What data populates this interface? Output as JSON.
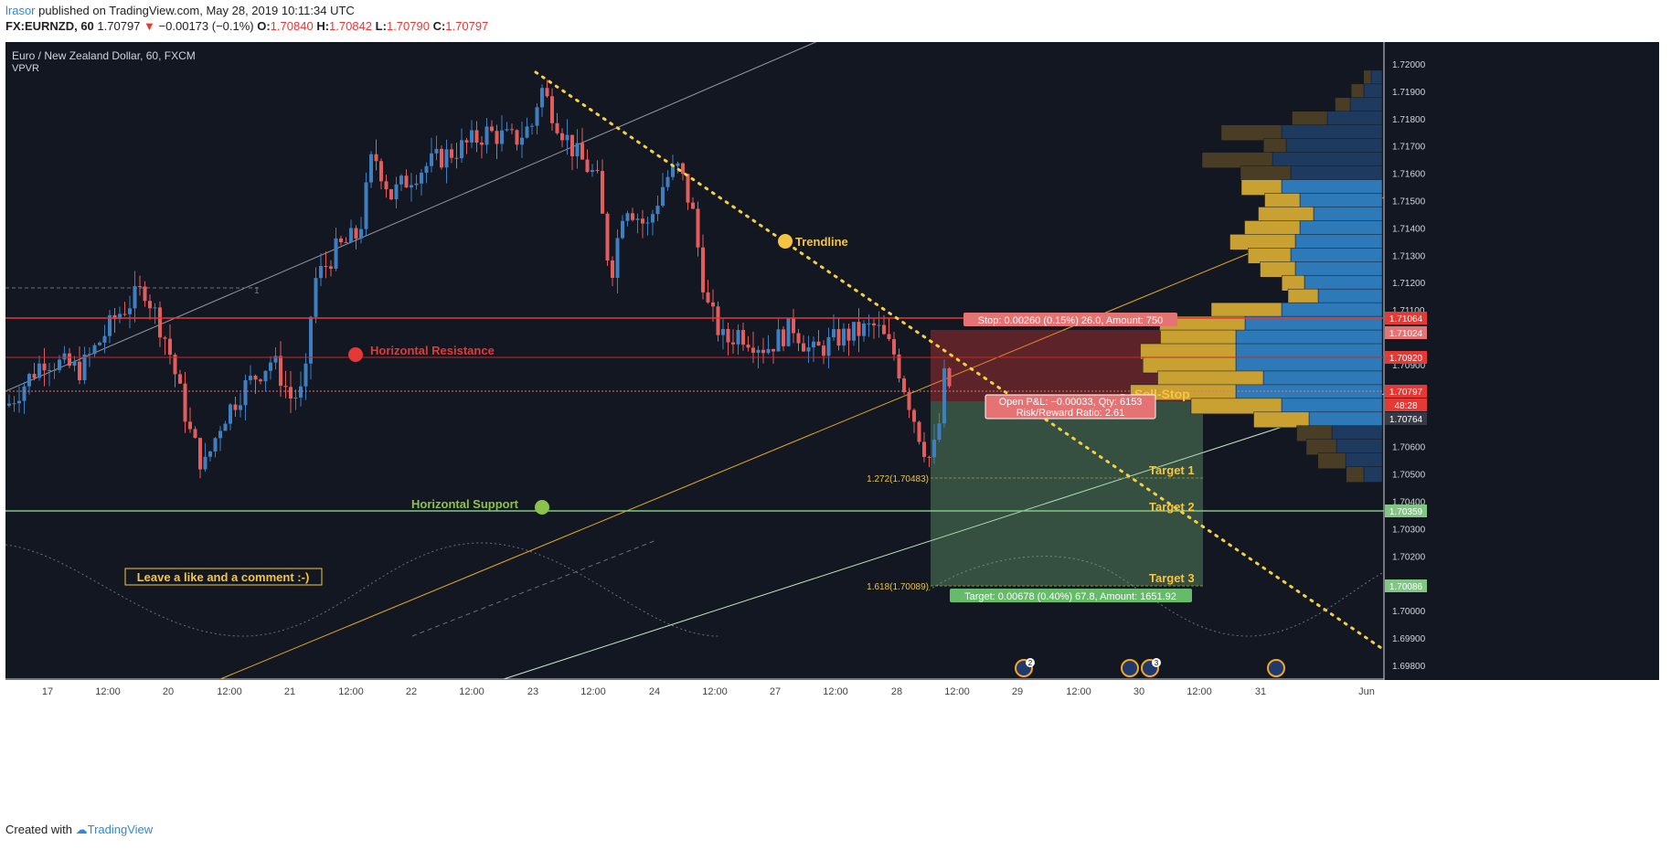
{
  "header": {
    "user": "lrasor",
    "published": " published on TradingView.com, May 28, 2019 10:11:34 UTC",
    "symbol": "FX:EURNZD, 60",
    "last": "1.70797",
    "change_arrow": "▼",
    "change": "−0.00173 (−0.1%)",
    "o_label": "O:",
    "o": "1.70840",
    "h_label": "H:",
    "h": "1.70842",
    "l_label": "L:",
    "l": "1.70790",
    "c_label": "C:",
    "c": "1.70797"
  },
  "legend": {
    "title": "Euro / New Zealand Dollar, 60, FXCM",
    "indicator": "VPVR"
  },
  "annotations": {
    "trendline": "Trendline",
    "horizontal_resistance": "Horizontal Resistance",
    "horizontal_support": "Horizontal Support",
    "comment_box": "Leave a like and a comment :-)",
    "sell_stop": "Sell-Stop",
    "target1": "Target 1",
    "target2": "Target 2",
    "target3": "Target 3",
    "fib_1272": "1.272(1.70483)",
    "fib_1618": "1.618(1.70089)",
    "stop_box": "Stop: 0.00260 (0.15%) 26.0, Amount: 750",
    "pl_line1": "Open P&L: −0.00033, Qty: 6153",
    "pl_line2": "Risk/Reward Ratio: 2.61",
    "target_box": "Target: 0.00678 (0.40%) 67.8, Amount: 1651.92",
    "marker_one": "1",
    "event_badge_1": "2",
    "event_badge_2": "3"
  },
  "price_axis": {
    "ticks": [
      "1.72000",
      "1.71900",
      "1.71800",
      "1.71700",
      "1.71600",
      "1.71500",
      "1.71400",
      "1.71300",
      "1.71200",
      "1.71100",
      "1.70900",
      "1.70600",
      "1.70500",
      "1.70400",
      "1.70300",
      "1.70200",
      "1.70000",
      "1.69900",
      "1.69800"
    ],
    "tags": [
      {
        "label": "1.71064",
        "color": "#e53935"
      },
      {
        "label": "1.71024",
        "color": "#e57373"
      },
      {
        "label": "1.70920",
        "color": "#e53935"
      },
      {
        "label": "1.70797",
        "color": "#e53935"
      },
      {
        "label": "48:28",
        "color": "#e53935"
      },
      {
        "label": "1.70764",
        "color": "#363a45"
      },
      {
        "label": "1.70359",
        "color": "#81c784"
      },
      {
        "label": "1.70086",
        "color": "#81c784"
      }
    ]
  },
  "time_axis": {
    "ticks": [
      "17",
      "12:00",
      "20",
      "12:00",
      "21",
      "12:00",
      "22",
      "12:00",
      "23",
      "12:00",
      "24",
      "12:00",
      "27",
      "12:00",
      "28",
      "12:00",
      "29",
      "12:00",
      "30",
      "12:00",
      "31",
      "Jun"
    ]
  },
  "footer": {
    "created": "Created with",
    "brand": "TradingView"
  },
  "colors": {
    "background": "#131722",
    "up": "#3d7fc1",
    "down": "#e35d5d",
    "resistance": "#e53935",
    "support": "#81c784",
    "trendline": "#f5d142"
  },
  "chart_data": {
    "type": "candlestick",
    "title": "Euro / New Zealand Dollar, 60, FXCM",
    "ylim": [
      1.6975,
      1.7208
    ],
    "horizontal_resistance": [
      1.71064,
      1.7092
    ],
    "horizontal_support": 1.70359,
    "current_price": 1.70797,
    "stop": 1.71024,
    "fib_1272": 1.70483,
    "fib_1618": 1.70089,
    "vpvr_levels": [
      1.7195,
      1.719,
      1.7185,
      1.718,
      1.7175,
      1.717,
      1.7165,
      1.716,
      1.7155,
      1.715,
      1.7145,
      1.714,
      1.7135,
      1.713,
      1.7125,
      1.712,
      1.7115,
      1.711,
      1.7105,
      1.71,
      1.7095,
      1.709,
      1.7085,
      1.708,
      1.7075,
      1.707,
      1.7065,
      1.706,
      1.7055,
      1.705
    ],
    "vpvr_up": [
      12,
      20,
      35,
      60,
      110,
      105,
      120,
      100,
      110,
      90,
      75,
      90,
      95,
      100,
      95,
      85,
      70,
      110,
      150,
      160,
      160,
      160,
      130,
      160,
      110,
      80,
      55,
      50,
      40,
      20
    ],
    "vpvr_down": [
      15,
      25,
      30,
      70,
      120,
      45,
      140,
      100,
      80,
      70,
      110,
      110,
      130,
      85,
      70,
      45,
      60,
      140,
      170,
      150,
      190,
      185,
      210,
      210,
      180,
      110,
      70,
      60,
      55,
      35
    ]
  }
}
